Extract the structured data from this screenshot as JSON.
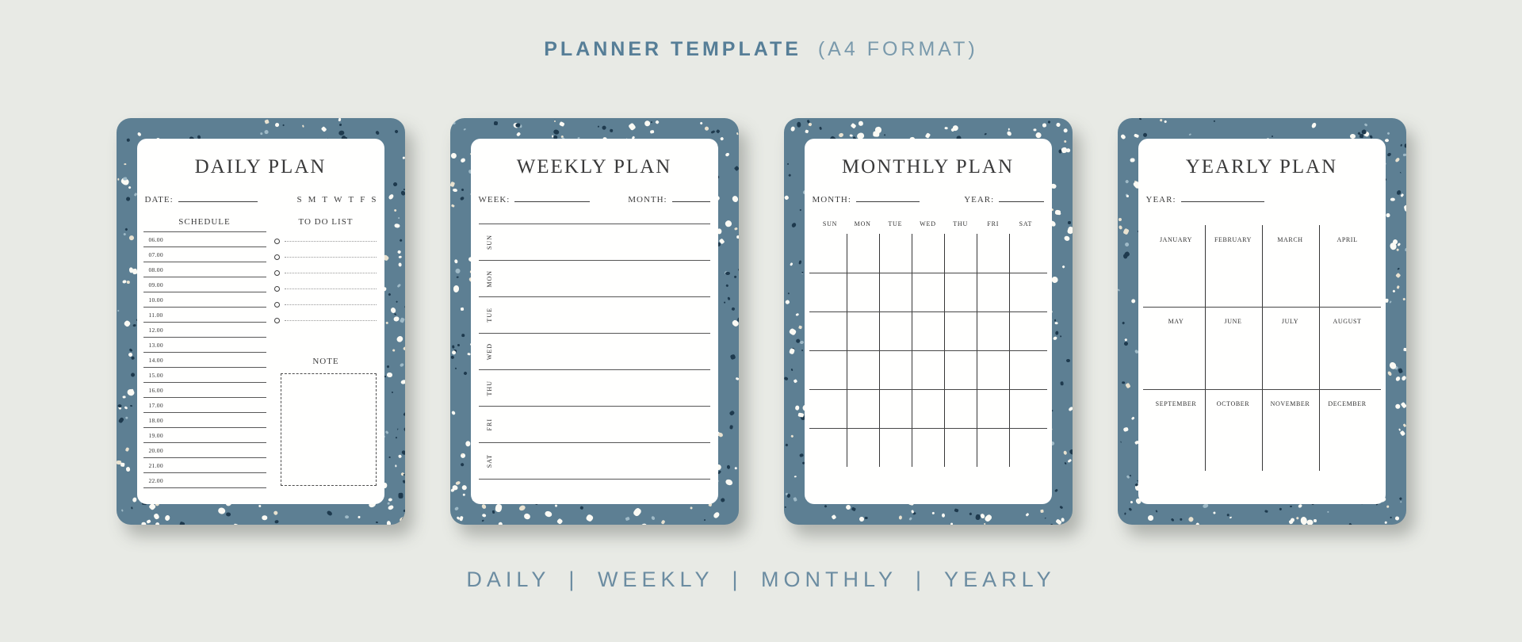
{
  "header": {
    "title_bold": "PLANNER TEMPLATE",
    "title_light": "(A4 FORMAT)"
  },
  "footer": {
    "caption": "DAILY | WEEKLY | MONTHLY | YEARLY"
  },
  "colors": {
    "background": "#e8eae5",
    "card_border": "#5d7f93",
    "speckle_white": "#fbfaf4",
    "speckle_navy": "#1e3a4e",
    "speckle_pale_blue": "#9fbac7",
    "speckle_cream": "#e9e2d0",
    "header_accent": "#567e97",
    "footer_accent": "#6b8ca1",
    "page": "#fffffe",
    "ink": "#3c3c3c"
  },
  "cards": {
    "daily": {
      "title": "DAILY PLAN",
      "date_label": "DATE:",
      "week_initials": [
        "S",
        "M",
        "T",
        "W",
        "T",
        "F",
        "S"
      ],
      "schedule": {
        "heading": "SCHEDULE",
        "times": [
          "06.00",
          "07.00",
          "08.00",
          "09.00",
          "10.00",
          "11.00",
          "12.00",
          "13.00",
          "14.00",
          "15.00",
          "16.00",
          "17.00",
          "18.00",
          "19.00",
          "20.00",
          "21.00",
          "22.00"
        ]
      },
      "todo": {
        "heading": "TO DO LIST",
        "rows": 6
      },
      "note": {
        "heading": "NOTE"
      }
    },
    "weekly": {
      "title": "WEEKLY PLAN",
      "week_label": "WEEK:",
      "month_label": "MONTH:",
      "days": [
        "SUN",
        "MON",
        "TUE",
        "WED",
        "THU",
        "FRI",
        "SAT"
      ]
    },
    "monthly": {
      "title": "MONTHLY PLAN",
      "month_label": "MONTH:",
      "year_label": "YEAR:",
      "weekdays": [
        "SUN",
        "MON",
        "TUE",
        "WED",
        "THU",
        "FRI",
        "SAT"
      ],
      "grid": {
        "cols": 7,
        "rows": 6
      }
    },
    "yearly": {
      "title": "YEARLY PLAN",
      "year_label": "YEAR:",
      "months": [
        "JANUARY",
        "FEBRUARY",
        "MARCH",
        "APRIL",
        "MAY",
        "JUNE",
        "JULY",
        "AUGUST",
        "SEPTEMBER",
        "OCTOBER",
        "NOVEMBER",
        "DECEMBER"
      ],
      "grid": {
        "cols": 4,
        "rows": 3
      }
    }
  }
}
